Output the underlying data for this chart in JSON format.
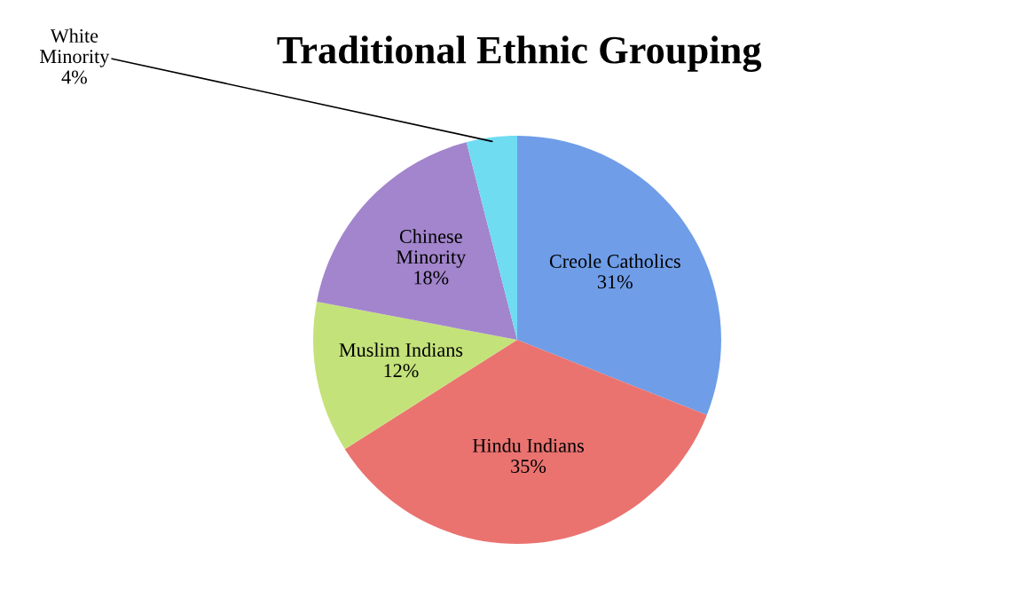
{
  "chart_data": {
    "type": "pie",
    "title": "Traditional Ethnic Grouping",
    "categories": [
      "Creole Catholics",
      "Hindu Indians",
      "Muslim Indians",
      "Chinese\nMinority",
      "White\nMinority"
    ],
    "values": [
      31,
      35,
      12,
      18,
      4
    ],
    "colors": [
      "#6f9de8",
      "#ea7370",
      "#c4e27a",
      "#a285cc",
      "#6fdcf2"
    ],
    "value_labels": [
      "31%",
      "35%",
      "12%",
      "18%",
      "4%"
    ]
  }
}
